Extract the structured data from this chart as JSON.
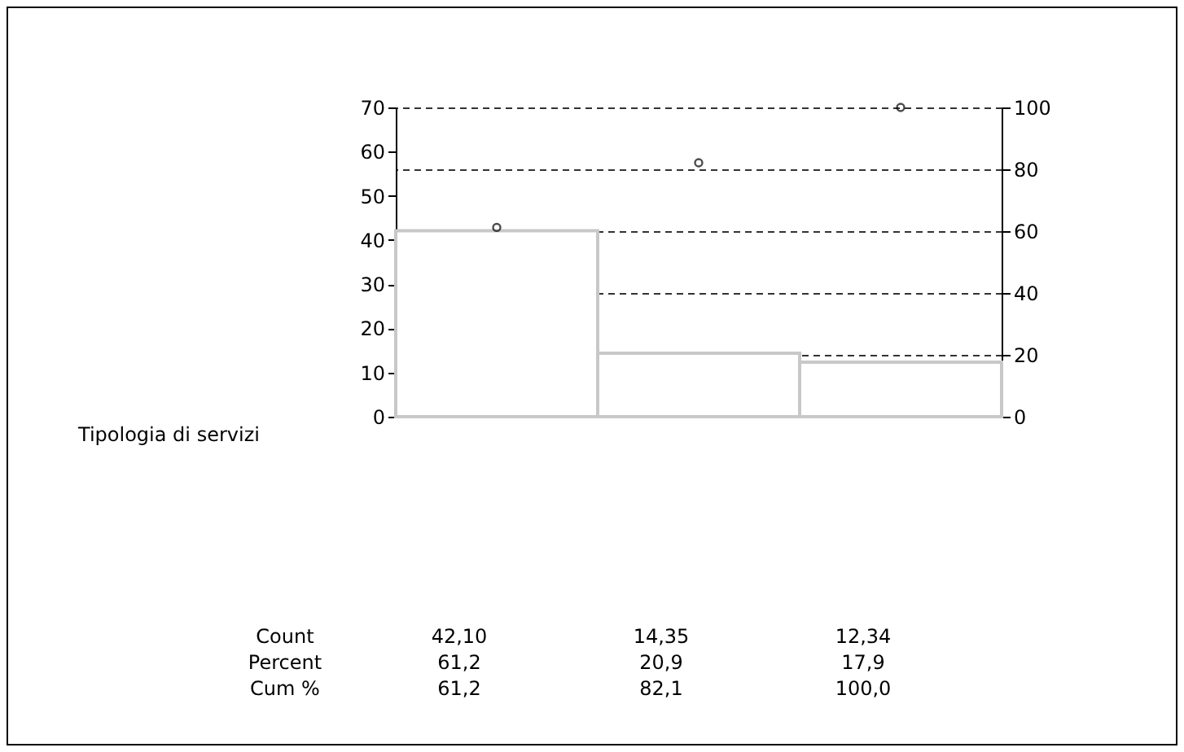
{
  "chart_data": {
    "type": "bar",
    "categories": [
      null,
      null,
      null
    ],
    "series": [
      {
        "color": "#ffffff",
        "values": [
          42.1,
          14.35,
          12.34
        ],
        "value_labels": [
          "42,10",
          "14,35",
          "12,34"
        ]
      },
      {
        "type": "scatter",
        "axis": "y2",
        "color": "#000000",
        "marker": "circle",
        "values": [
          61.2,
          82.1,
          100
        ],
        "value_labels": [
          "61,2",
          "82,1",
          "100,0"
        ]
      }
    ],
    "ylim": [
      0,
      70
    ],
    "yticks": [
      0,
      10,
      20,
      30,
      40,
      50,
      60,
      70
    ],
    "y2lim": [
      0,
      100
    ],
    "y2ticks": [
      0,
      20,
      40,
      60,
      80,
      100
    ],
    "grid": "y",
    "annotations": [
      "Count",
      "Percent",
      "Cum %",
      "61,2",
      "20,9",
      "17,9",
      "Tipologia di servizi"
    ]
  }
}
